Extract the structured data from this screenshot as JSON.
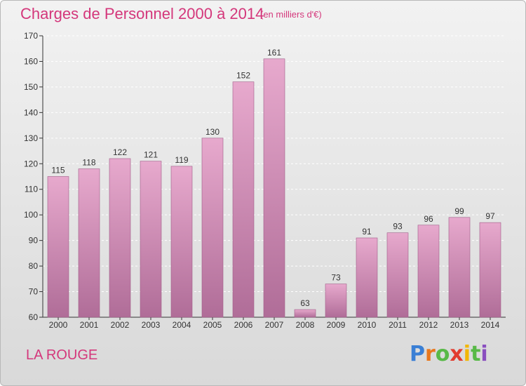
{
  "header": {
    "title": "Charges de Personnel 2000 à 2014",
    "unit": "(en milliers d'€)"
  },
  "footer": {
    "commune": "LA ROUGE",
    "logo": [
      "P",
      "r",
      "o",
      "x",
      "i",
      "t",
      "i"
    ]
  },
  "colors": {
    "accent": "#d4377b",
    "bar_top": "#e7a9cd",
    "bar_bottom": "#b06d98",
    "logo": [
      "#3a7fd5",
      "#e8771d",
      "#58b947",
      "#e23b2e",
      "#f2b705",
      "#58b947",
      "#8a4fbf"
    ]
  },
  "chart_data": {
    "type": "bar",
    "title": "Charges de Personnel 2000 à 2014",
    "subtitle": "(en milliers d'€)",
    "categories": [
      "2000",
      "2001",
      "2002",
      "2003",
      "2004",
      "2005",
      "2006",
      "2007",
      "2008",
      "2009",
      "2010",
      "2011",
      "2012",
      "2013",
      "2014"
    ],
    "values": [
      115,
      118,
      122,
      121,
      119,
      130,
      152,
      161,
      63,
      73,
      91,
      93,
      96,
      99,
      97
    ],
    "ylim": [
      60,
      170
    ],
    "yticks": [
      60,
      70,
      80,
      90,
      100,
      110,
      120,
      130,
      140,
      150,
      160,
      170
    ],
    "grid": true,
    "xlabel": "",
    "ylabel": ""
  }
}
